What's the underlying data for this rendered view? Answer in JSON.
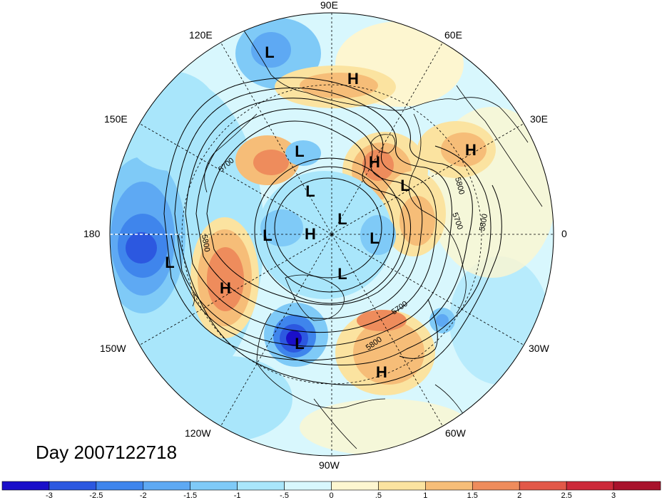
{
  "map": {
    "projection": "north-polar-stereographic",
    "field": "500 hPa geopotential height contours with normalized anomaly shading",
    "longitude_labels": {
      "lon_90E": "90E",
      "lon_60E": "60E",
      "lon_30E": "30E",
      "lon_0": "0",
      "lon_30W": "30W",
      "lon_60W": "60W",
      "lon_90W": "90W",
      "lon_120W": "120W",
      "lon_150W": "150W",
      "lon_180": "180",
      "lon_150E": "150E",
      "lon_120E": "120E"
    },
    "contour_labels": [
      "5700",
      "5800",
      "5700",
      "5800",
      "5700",
      "5800",
      "5800"
    ],
    "pressure_centers": [
      {
        "type": "L",
        "label": "L"
      },
      {
        "type": "H",
        "label": "H"
      },
      {
        "type": "L",
        "label": "L"
      },
      {
        "type": "H",
        "label": "H"
      },
      {
        "type": "H",
        "label": "H"
      },
      {
        "type": "L",
        "label": "L"
      },
      {
        "type": "L",
        "label": "L"
      },
      {
        "type": "L",
        "label": "L"
      },
      {
        "type": "L",
        "label": "L"
      },
      {
        "type": "H",
        "label": "H"
      },
      {
        "type": "L",
        "label": "L"
      },
      {
        "type": "L",
        "label": "L"
      },
      {
        "type": "L",
        "label": "L"
      },
      {
        "type": "H",
        "label": "H"
      },
      {
        "type": "L",
        "label": "L"
      },
      {
        "type": "H",
        "label": "H"
      }
    ],
    "title": "Day 2007122718"
  },
  "colorbar": {
    "tick_labels": [
      "-3",
      "-2.5",
      "-2",
      "-1.5",
      "-1",
      "-.5",
      "0",
      ".5",
      "1",
      "1.5",
      "2",
      "2.5",
      "3"
    ],
    "colors": [
      "#1a0fc9",
      "#2c58e0",
      "#3f85ec",
      "#5ea9f3",
      "#7fcaf7",
      "#a9e6fb",
      "#d8f7fd",
      "#fdf6d0",
      "#fbe3a0",
      "#f6bd78",
      "#ee8c5c",
      "#e25848",
      "#cc2a3a",
      "#a8122c"
    ]
  }
}
